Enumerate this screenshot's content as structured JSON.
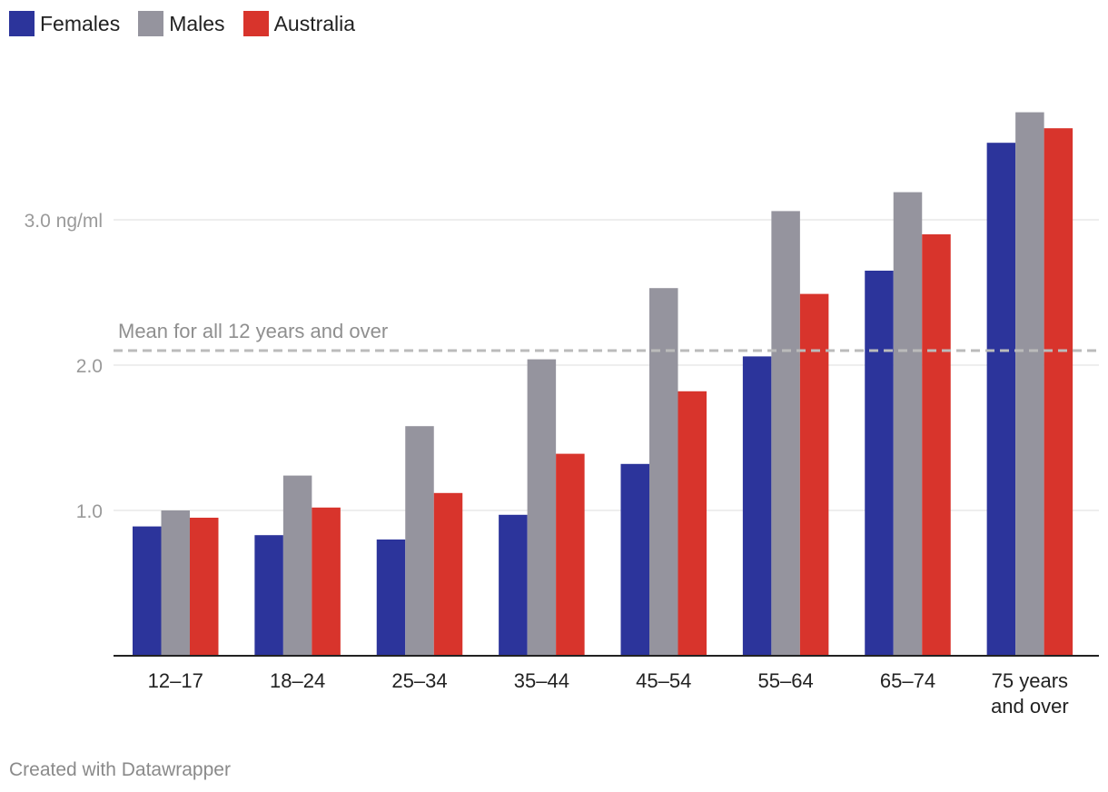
{
  "chart_data": {
    "type": "bar",
    "categories": [
      [
        "12–17"
      ],
      [
        "18–24"
      ],
      [
        "25–34"
      ],
      [
        "35–44"
      ],
      [
        "45–54"
      ],
      [
        "55–64"
      ],
      [
        "65–74"
      ],
      [
        "75 years",
        "and over"
      ]
    ],
    "series": [
      {
        "name": "Females",
        "color": "#2c349b",
        "values": [
          0.89,
          0.83,
          0.8,
          0.97,
          1.32,
          2.06,
          2.65,
          3.53
        ]
      },
      {
        "name": "Males",
        "color": "#95949e",
        "values": [
          1.0,
          1.24,
          1.58,
          2.04,
          2.53,
          3.06,
          3.19,
          3.74
        ]
      },
      {
        "name": "Australia",
        "color": "#d8342c",
        "values": [
          0.95,
          1.02,
          1.12,
          1.39,
          1.82,
          2.49,
          2.9,
          3.63
        ]
      }
    ],
    "yticks": [
      {
        "value": 1.0,
        "label": "1.0"
      },
      {
        "value": 2.0,
        "label": "2.0"
      },
      {
        "value": 3.0,
        "label": "3.0 ng/ml"
      }
    ],
    "ylim": [
      0,
      3.75
    ],
    "reference_line": {
      "value": 2.1,
      "label": "Mean for all 12 years and over"
    },
    "title": "",
    "xlabel": "",
    "ylabel": "ng/ml",
    "legend_position": "top-left"
  },
  "legend": [
    {
      "label": "Females",
      "color": "#2c349b"
    },
    {
      "label": "Males",
      "color": "#95949e"
    },
    {
      "label": "Australia",
      "color": "#d8342c"
    }
  ],
  "footer": {
    "credit": "Created with Datawrapper"
  }
}
